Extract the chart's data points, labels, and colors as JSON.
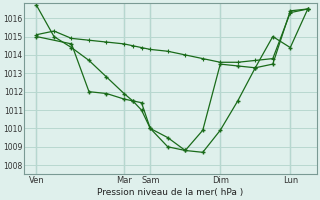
{
  "background_color": "#dff0ec",
  "grid_color": "#b8d8d0",
  "line_color": "#1a6b1a",
  "xlabel": "Pression niveau de la mer( hPa )",
  "ylim": [
    1007.5,
    1016.8
  ],
  "yticks": [
    1008,
    1009,
    1010,
    1011,
    1012,
    1013,
    1014,
    1015,
    1016
  ],
  "xlim": [
    -0.2,
    16.5
  ],
  "xtick_labels": [
    "Ven",
    "Mar",
    "Sam",
    "Dim",
    "Lun"
  ],
  "xtick_positions": [
    0.5,
    5.5,
    7.0,
    11.0,
    15.0
  ],
  "vline_positions": [
    0.5,
    5.5,
    7.0,
    11.0,
    15.0
  ],
  "line1_x": [
    0.5,
    1.5,
    2.5,
    3.5,
    4.5,
    5.5,
    6.0,
    6.5,
    7.0,
    8.0,
    9.0,
    10.0,
    11.0,
    12.0,
    13.0,
    14.0,
    15.0,
    16.0
  ],
  "line1_y": [
    1016.7,
    1015.0,
    1014.4,
    1013.7,
    1012.8,
    1011.9,
    1011.5,
    1011.0,
    1010.0,
    1009.5,
    1008.8,
    1008.7,
    1009.9,
    1011.5,
    1013.3,
    1013.5,
    1016.4,
    1016.5
  ],
  "line2_x": [
    0.5,
    1.5,
    2.5,
    3.5,
    4.5,
    5.5,
    6.0,
    6.5,
    7.0,
    8.0,
    9.0,
    10.0,
    11.0,
    12.0,
    13.0,
    14.0,
    15.0,
    16.0
  ],
  "line2_y": [
    1015.1,
    1015.3,
    1014.9,
    1014.8,
    1014.7,
    1014.6,
    1014.5,
    1014.4,
    1014.3,
    1014.2,
    1014.0,
    1013.8,
    1013.6,
    1013.6,
    1013.7,
    1013.8,
    1016.3,
    1016.5
  ],
  "line3_x": [
    0.5,
    2.5,
    3.5,
    4.5,
    5.5,
    6.0,
    6.5,
    7.0,
    8.0,
    9.0,
    10.0,
    11.0,
    12.0,
    13.0,
    14.0,
    15.0,
    16.0
  ],
  "line3_y": [
    1015.0,
    1014.6,
    1012.0,
    1011.9,
    1011.6,
    1011.5,
    1011.4,
    1010.0,
    1009.0,
    1008.8,
    1009.9,
    1013.5,
    1013.4,
    1013.3,
    1015.0,
    1014.4,
    1016.5
  ]
}
